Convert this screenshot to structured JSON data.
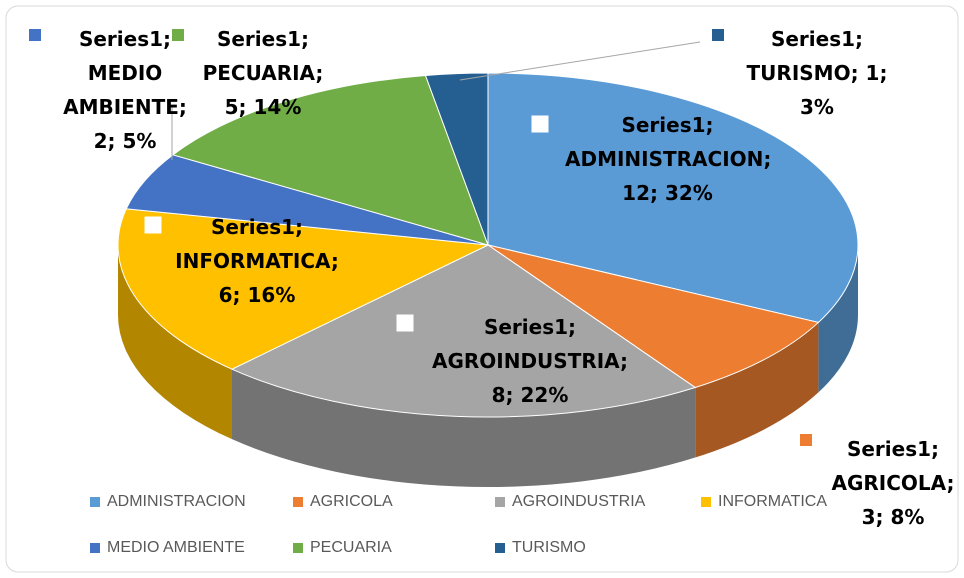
{
  "chart_data": {
    "type": "pie3d",
    "series_name": "Series1",
    "categories": [
      "ADMINISTRACION",
      "AGRICOLA",
      "AGROINDUSTRIA",
      "INFORMATICA",
      "MEDIO AMBIENTE",
      "PECUARIA",
      "TURISMO"
    ],
    "values": [
      12,
      3,
      8,
      6,
      2,
      5,
      1
    ],
    "value_labels": [
      "Series1; ADMINISTRACION; 12; 32%",
      "Series1; AGRICOLA; 3; 8%",
      "Series1; AGROINDUSTRIA; 8; 22%",
      "Series1; INFORMATICA; 6; 16%",
      "Series1; MEDIO AMBIENTE; 2; 5%",
      "Series1; PECUARIA; 5; 14%",
      "Series1; TURISMO; 1; 3%"
    ],
    "colors": [
      "#5b9bd5",
      "#ed7d31",
      "#a5a5a5",
      "#ffc000",
      "#4472c4",
      "#70ad47",
      "#255e91"
    ],
    "legend": "bottom"
  }
}
